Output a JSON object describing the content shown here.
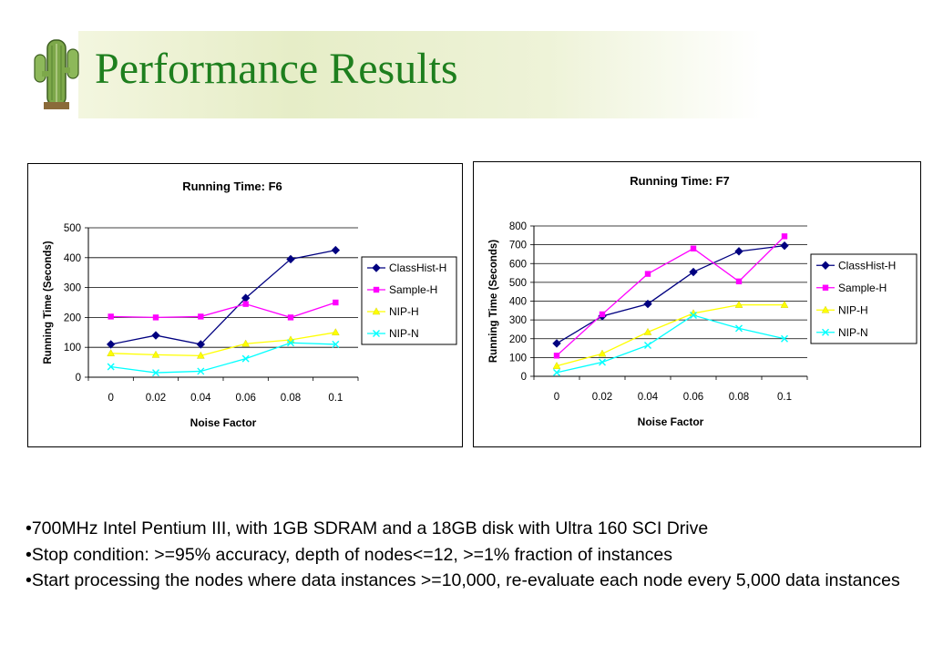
{
  "slide": {
    "title": "Performance Results",
    "bullets": [
      "•700MHz Intel Pentium III, with 1GB SDRAM and a 18GB disk with Ultra 160 SCI Drive",
      "•Stop condition: >=95% accuracy, depth of nodes<=12, >=1% fraction of instances",
      "•Start processing the nodes where data instances >=10,000, re-evaluate each node every 5,000 data instances"
    ]
  },
  "chart_data": [
    {
      "type": "line",
      "title": "Running Time: F6",
      "xlabel": "Noise Factor",
      "ylabel": "Running Time (Seconds)",
      "categories": [
        "0",
        "0.02",
        "0.04",
        "0.06",
        "0.08",
        "0.1"
      ],
      "ylim": [
        0,
        500
      ],
      "yticks": [
        0,
        100,
        200,
        300,
        400,
        500
      ],
      "grid": true,
      "legend": "right",
      "series": [
        {
          "name": "ClassHist-H",
          "color": "#000080",
          "marker": "diamond",
          "values": [
            110,
            140,
            110,
            265,
            395,
            425
          ]
        },
        {
          "name": "Sample-H",
          "color": "#ff00ff",
          "marker": "square",
          "values": [
            203,
            200,
            203,
            245,
            200,
            250
          ]
        },
        {
          "name": "NIP-H",
          "color": "#ffff00",
          "marker": "triangle",
          "values": [
            80,
            75,
            72,
            112,
            125,
            150
          ]
        },
        {
          "name": "NIP-N",
          "color": "#00ffff",
          "marker": "x",
          "values": [
            35,
            15,
            20,
            62,
            115,
            110
          ]
        }
      ]
    },
    {
      "type": "line",
      "title": "Running Time: F7",
      "xlabel": "Noise Factor",
      "ylabel": "Running Time (Seconds)",
      "categories": [
        "0",
        "0.02",
        "0.04",
        "0.06",
        "0.08",
        "0.1"
      ],
      "ylim": [
        0,
        800
      ],
      "yticks": [
        0,
        100,
        200,
        300,
        400,
        500,
        600,
        700,
        800
      ],
      "grid": true,
      "legend": "right",
      "series": [
        {
          "name": "ClassHist-H",
          "color": "#000080",
          "marker": "diamond",
          "values": [
            175,
            320,
            385,
            555,
            665,
            695
          ]
        },
        {
          "name": "Sample-H",
          "color": "#ff00ff",
          "marker": "square",
          "values": [
            110,
            330,
            545,
            680,
            505,
            745
          ]
        },
        {
          "name": "NIP-H",
          "color": "#ffff00",
          "marker": "triangle",
          "values": [
            55,
            120,
            235,
            335,
            380,
            380
          ]
        },
        {
          "name": "NIP-N",
          "color": "#00ffff",
          "marker": "x",
          "values": [
            20,
            75,
            165,
            325,
            255,
            200
          ]
        }
      ]
    }
  ]
}
